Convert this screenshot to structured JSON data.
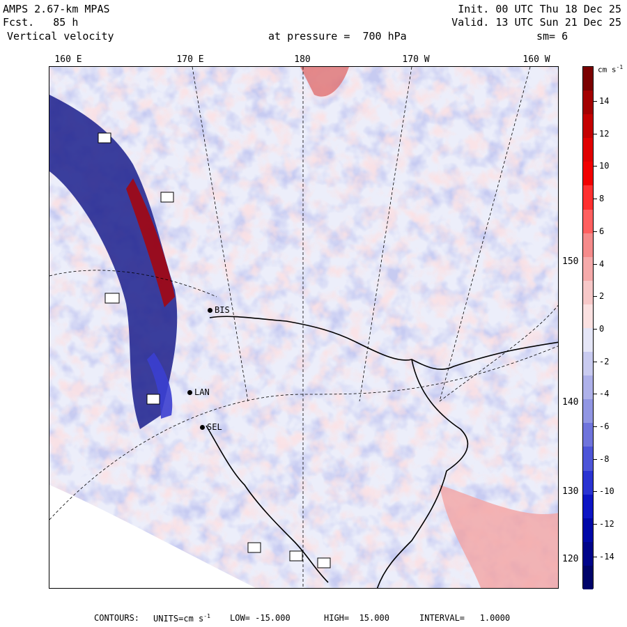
{
  "header": {
    "model": "AMPS 2.67-km MPAS",
    "fcst_label": "Fcst.",
    "fcst_value": "85 h",
    "field": "Vertical velocity",
    "init": "Init. 00 UTC Thu 18 Dec 25",
    "valid": "Valid. 13 UTC Sun 21 Dec 25",
    "level": "at pressure =  700 hPa",
    "smooth": "sm= 6"
  },
  "longitude_labels": [
    "160 E",
    "170 E",
    "180",
    "170 W",
    "160 W"
  ],
  "latitude_labels": [
    "150 W",
    "140 W",
    "130 W",
    "120 W"
  ],
  "stations": [
    "BIS",
    "LAN",
    "SEL"
  ],
  "colorbar": {
    "unit": "cm s-1",
    "ticks": [
      "14",
      "12",
      "10",
      "8",
      "6",
      "4",
      "2",
      "0",
      "-2",
      "-4",
      "-6",
      "-8",
      "-10",
      "-12",
      "-14"
    ],
    "colors": [
      "#7a0000",
      "#a30000",
      "#c40000",
      "#e00000",
      "#f20000",
      "#ff3030",
      "#ff6060",
      "#f58b8b",
      "#f5aaaa",
      "#f7c8c8",
      "#fbe1e1",
      "#e5e6f7",
      "#c9cbf0",
      "#aeb1ea",
      "#9196e3",
      "#6f74dc",
      "#4d55d8",
      "#2a33d2",
      "#0d15c4",
      "#0008a8",
      "#00048a",
      "#00036a"
    ],
    "icon": "colorbar"
  },
  "footer": {
    "contours": "CONTOURS:",
    "units_label": "UNITS=cm s",
    "units_exp": "-1",
    "low": "LOW= -15.000",
    "high": "HIGH=  15.000",
    "interval": "INTERVAL=   1.0000"
  }
}
